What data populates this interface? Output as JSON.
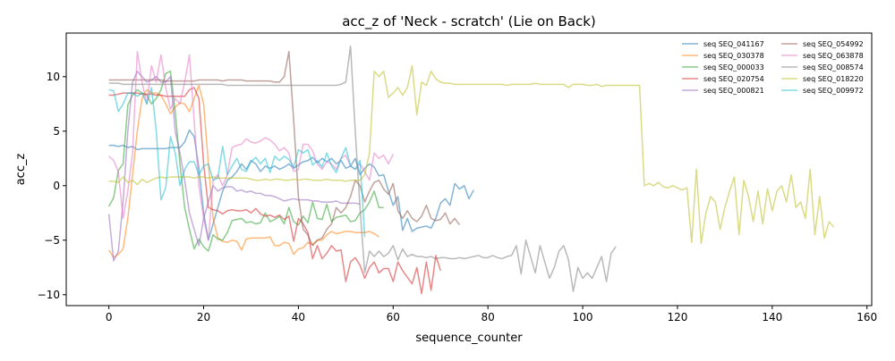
{
  "chart_data": {
    "type": "line",
    "title": "acc_z of 'Neck - scratch' (Lie on Back)",
    "xlabel": "sequence_counter",
    "ylabel": "acc_z",
    "xlim": [
      -9,
      161
    ],
    "ylim": [
      -11,
      14
    ],
    "xticks": [
      0,
      20,
      40,
      60,
      80,
      100,
      120,
      140,
      160
    ],
    "yticks": [
      -10,
      -5,
      0,
      5,
      10
    ],
    "grid": false,
    "legend": {
      "placement": "top-right",
      "columns": 2
    },
    "series": [
      {
        "name": "seq SEQ_041167",
        "color": "#1f77b4",
        "x_start": 0,
        "values": [
          3.7,
          3.7,
          3.6,
          3.7,
          3.5,
          3.6,
          3.3,
          3.4,
          3.4,
          3.4,
          3.4,
          3.4,
          3.4,
          3.5,
          3.5,
          3.5,
          4.0,
          5.1,
          4.5,
          1.6,
          -2.5,
          -5.0,
          -3.5,
          -2.0,
          -0.5,
          0.5,
          0.8,
          1.3,
          2.0,
          1.5,
          2.3,
          2.0,
          1.3,
          1.8,
          1.6,
          1.8,
          1.5,
          1.7,
          2.0,
          1.6,
          1.9,
          2.2,
          2.3,
          2.6,
          2.1,
          2.5,
          2.2,
          2.5,
          2.0,
          2.3,
          1.6,
          1.8,
          2.5,
          1.0,
          1.6,
          2.0,
          1.7,
          0.9,
          1.0,
          -0.5,
          -1.8,
          -1.0,
          -4.1,
          -3.0,
          -4.2,
          -3.9,
          -3.8,
          -3.7,
          -3.9,
          -3.0,
          -1.6,
          -1.2,
          -1.8,
          0.2,
          -0.3,
          0.0,
          -1.2,
          -0.4
        ]
      },
      {
        "name": "seq SEQ_030378",
        "color": "#ff7f0e",
        "x_start": 0,
        "values": [
          -5.9,
          -6.6,
          -6.3,
          -5.8,
          -3.0,
          1.0,
          5.0,
          8.0,
          8.8,
          8.5,
          8.5,
          8.3,
          7.5,
          6.6,
          7.2,
          7.6,
          7.5,
          6.8,
          8.0,
          9.2,
          7.5,
          2.0,
          -3.0,
          -4.8,
          -5.1,
          -5.2,
          -5.0,
          -5.1,
          -5.9,
          -4.9,
          -4.8,
          -4.8,
          -4.8,
          -4.8,
          -4.7,
          -5.5,
          -5.5,
          -5.2,
          -5.3,
          -6.3,
          -5.8,
          -5.7,
          -5.2,
          -5.4,
          -5.0,
          -5.0,
          -4.5,
          -4.2,
          -4.4,
          -4.3,
          -4.2,
          -4.2,
          -4.3,
          -4.3,
          -4.3,
          -4.2,
          -4.4,
          -4.7
        ]
      },
      {
        "name": "seq SEQ_000033",
        "color": "#2ca02c",
        "x_start": 0,
        "values": [
          -1.9,
          -1.1,
          1.4,
          2.0,
          7.4,
          8.3,
          8.8,
          8.5,
          8.3,
          7.5,
          8.0,
          8.8,
          10.3,
          10.5,
          6.8,
          2.0,
          -2.0,
          -4.0,
          -5.8,
          -4.9,
          -5.6,
          -6.0,
          -4.5,
          -4.9,
          -5.0,
          -4.3,
          -3.2,
          -3.1,
          -3.0,
          -3.4,
          -3.3,
          -3.5,
          -3.4,
          -2.5,
          -3.3,
          -3.1,
          -2.8,
          -3.5,
          -2.0,
          -3.3,
          -3.6,
          -2.8,
          -3.4,
          -1.5,
          -3.0,
          -3.1,
          -1.7,
          -3.3,
          -2.9,
          -2.8,
          -2.7,
          -3.3,
          -3.2,
          -2.5,
          -2.2,
          -1.5,
          -0.5,
          -2.0,
          -2.0
        ]
      },
      {
        "name": "seq SEQ_020754",
        "color": "#d62728",
        "x_start": 0,
        "values": [
          8.3,
          8.3,
          8.4,
          8.5,
          8.5,
          8.5,
          8.5,
          8.4,
          8.4,
          8.4,
          8.3,
          8.3,
          8.2,
          8.2,
          8.2,
          8.2,
          8.2,
          8.8,
          9.0,
          8.0,
          2.0,
          -2.0,
          -2.2,
          -2.3,
          -2.6,
          -2.3,
          -2.2,
          -2.3,
          -2.3,
          -2.2,
          -2.5,
          -2.1,
          -2.6,
          -2.8,
          -2.7,
          -2.9,
          -2.7,
          -3.1,
          -2.8,
          -5.1,
          -3.0,
          -3.5,
          -4.3,
          -6.7,
          -5.5,
          -6.7,
          -6.2,
          -5.5,
          -6.0,
          -5.9,
          -8.8,
          -7.0,
          -6.6,
          -7.3,
          -8.5,
          -7.5,
          -7.0,
          -8.0,
          -7.6,
          -7.6,
          -8.8,
          -7.0,
          -7.8,
          -8.4,
          -9.0,
          -7.5,
          -9.9,
          -7.0,
          -9.6,
          -6.4,
          -7.8
        ]
      },
      {
        "name": "seq SEQ_000821",
        "color": "#9467bd",
        "x_start": 0,
        "values": [
          -2.6,
          -6.9,
          -6.0,
          -1.5,
          5.0,
          9.5,
          10.5,
          10.0,
          9.5,
          9.7,
          10.0,
          9.5,
          9.5,
          10.0,
          5.0,
          3.0,
          0.5,
          -2.5,
          -4.0,
          -5.5,
          -3.0,
          -1.5,
          0.0,
          -0.5,
          -0.2,
          -0.1,
          -0.1,
          -0.5,
          -0.4,
          -0.6,
          -0.5,
          -0.7,
          -0.7,
          -0.9,
          -0.9,
          -1.0,
          -1.2,
          -1.4,
          -1.3,
          -1.2,
          -1.3,
          -1.3,
          -1.3,
          -1.4,
          -1.4,
          -1.5,
          -1.5,
          -1.5,
          -1.4,
          -1.6,
          -1.6,
          -1.6,
          -1.6,
          -1.7
        ]
      },
      {
        "name": "seq SEQ_054992",
        "color": "#8c564b",
        "x_start": 0,
        "values": [
          9.7,
          9.7,
          9.7,
          9.7,
          9.7,
          9.7,
          9.7,
          9.7,
          9.7,
          9.7,
          9.7,
          9.7,
          9.6,
          9.6,
          9.6,
          9.6,
          9.6,
          9.6,
          9.6,
          9.7,
          9.7,
          9.7,
          9.7,
          9.7,
          9.6,
          9.7,
          9.7,
          9.7,
          9.7,
          9.6,
          9.6,
          9.6,
          9.6,
          9.6,
          9.6,
          9.5,
          9.5,
          10.0,
          12.3,
          6.0,
          -1.0,
          -4.0,
          -4.5,
          -5.5,
          -5.0,
          -4.8,
          -4.0,
          -3.5,
          -2.0,
          -2.5,
          -2.0,
          -1.0,
          0.5,
          0.0,
          -1.5,
          -0.5,
          0.3,
          0.5,
          -0.3,
          -0.8,
          0.2,
          -2.3,
          -3.0,
          -2.3,
          -3.0,
          -3.3,
          -2.8,
          -1.8,
          -3.0,
          -3.2,
          -3.1,
          -2.5,
          -3.5,
          -3.0,
          -3.6
        ]
      },
      {
        "name": "seq SEQ_063878",
        "color": "#e377c2",
        "x_start": 0,
        "values": [
          2.7,
          2.3,
          1.3,
          -3.0,
          -0.5,
          3.0,
          12.3,
          9.5,
          7.5,
          11.0,
          9.5,
          12.0,
          9.0,
          7.0,
          8.0,
          7.5,
          9.5,
          12.0,
          6.0,
          0.0,
          -3.0,
          -5.0,
          0.5,
          1.0,
          0.0,
          1.0,
          3.5,
          3.7,
          3.8,
          4.3,
          4.0,
          3.9,
          4.1,
          4.4,
          4.2,
          3.8,
          3.2,
          3.5,
          3.0,
          1.3,
          1.5,
          3.8,
          3.8,
          3.2,
          2.0,
          1.5,
          2.2,
          2.0,
          1.5,
          2.5,
          2.8,
          1.8,
          1.5,
          2.0,
          1.3,
          0.5,
          3.0,
          2.5,
          2.8,
          2.0,
          2.9
        ]
      },
      {
        "name": "seq SEQ_008574",
        "color": "#7f7f7f",
        "x_start": 0,
        "values": [
          9.4,
          9.4,
          9.4,
          9.3,
          9.3,
          9.3,
          9.3,
          9.3,
          9.3,
          9.3,
          9.3,
          9.3,
          9.3,
          9.3,
          9.3,
          9.3,
          9.3,
          9.3,
          9.3,
          9.3,
          9.3,
          9.3,
          9.3,
          9.3,
          9.3,
          9.2,
          9.2,
          9.2,
          9.2,
          9.2,
          9.2,
          9.2,
          9.2,
          9.2,
          9.2,
          9.2,
          9.2,
          9.2,
          9.2,
          9.2,
          9.2,
          9.2,
          9.2,
          9.2,
          9.2,
          9.2,
          9.2,
          9.2,
          9.2,
          9.3,
          9.5,
          12.8,
          5.0,
          -2.0,
          -8.0,
          -6.0,
          -6.5,
          -6.0,
          -6.5,
          -6.2,
          -5.5,
          -6.8,
          -5.8,
          -6.5,
          -6.3,
          -6.5,
          -6.5,
          -6.6,
          -6.5,
          -6.7,
          -6.6,
          -6.6,
          -6.7,
          -6.7,
          -6.6,
          -6.7,
          -6.6,
          -6.5,
          -6.4,
          -6.6,
          -6.6,
          -6.4,
          -6.6,
          -6.7,
          -6.5,
          -6.4,
          -5.5,
          -8.1,
          -5.0,
          -6.5,
          -8.0,
          -5.5,
          -7.0,
          -8.5,
          -7.5,
          -6.0,
          -5.5,
          -6.8,
          -9.7,
          -7.5,
          -8.5,
          -8.0,
          -8.5,
          -7.5,
          -6.5,
          -8.8,
          -6.2,
          -5.6
        ]
      },
      {
        "name": "seq SEQ_018220",
        "color": "#bcbd22",
        "x_start": 0,
        "values": [
          0.4,
          0.4,
          0.3,
          0.8,
          0.3,
          0.5,
          0.1,
          0.6,
          0.3,
          0.5,
          0.7,
          0.8,
          0.7,
          0.8,
          0.8,
          0.8,
          0.8,
          0.8,
          0.7,
          0.8,
          0.8,
          0.7,
          0.8,
          0.7,
          0.7,
          0.7,
          0.7,
          0.7,
          0.7,
          0.7,
          0.6,
          0.5,
          0.5,
          0.6,
          0.5,
          0.6,
          0.6,
          0.5,
          0.5,
          0.6,
          0.5,
          0.6,
          0.6,
          0.5,
          0.5,
          0.5,
          0.6,
          0.5,
          0.5,
          0.5,
          0.4,
          0.5,
          0.5,
          0.5,
          1.0,
          3.0,
          10.5,
          10.0,
          10.5,
          8.1,
          8.5,
          9.0,
          8.3,
          9.0,
          11.0,
          6.5,
          9.5,
          9.2,
          10.5,
          9.8,
          9.5,
          9.4,
          9.4,
          9.3,
          9.3,
          9.3,
          9.3,
          9.3,
          9.3,
          9.3,
          9.3,
          9.3,
          9.3,
          9.3,
          9.2,
          9.3,
          9.3,
          9.3,
          9.3,
          9.3,
          9.4,
          9.3,
          9.3,
          9.3,
          9.3,
          9.3,
          9.3,
          9.0,
          9.3,
          9.3,
          9.3,
          9.2,
          9.2,
          9.3,
          9.1,
          9.2,
          9.2,
          9.2,
          9.2,
          9.2,
          9.2,
          9.2,
          9.2,
          0.0,
          0.2,
          0.0,
          0.3,
          -0.1,
          -0.2,
          0.0,
          -0.2,
          -0.4,
          -0.2,
          -5.2,
          1.5,
          -5.3,
          -2.5,
          -1.0,
          -1.5,
          -4.0,
          -2.0,
          -0.5,
          0.8,
          -4.5,
          0.5,
          -1.0,
          -3.3,
          -0.5,
          -3.5,
          -0.3,
          -2.3,
          -0.5,
          0.0,
          -1.5,
          1.0,
          -2.0,
          -1.5,
          -3.0,
          1.5,
          -4.5,
          -1.0,
          -4.8,
          -3.3,
          -3.8
        ]
      },
      {
        "name": "seq SEQ_009972",
        "color": "#17becf",
        "x_start": 0,
        "values": [
          8.8,
          8.7,
          6.8,
          7.5,
          8.5,
          8.5,
          8.2,
          8.5,
          7.5,
          9.0,
          5.0,
          -1.3,
          -0.2,
          4.5,
          3.0,
          0.0,
          1.5,
          2.2,
          2.2,
          1.0,
          1.8,
          2.0,
          0.5,
          0.7,
          3.6,
          1.0,
          1.8,
          2.5,
          1.5,
          1.3,
          2.2,
          2.6,
          2.0,
          2.5,
          1.2,
          2.7,
          2.3,
          2.7,
          2.4,
          1.7,
          3.3,
          3.0,
          3.3,
          1.9,
          2.3,
          1.7,
          3.0,
          1.8,
          1.2,
          2.5,
          3.5,
          1.8,
          1.5,
          2.3,
          -4.7
        ]
      }
    ]
  }
}
